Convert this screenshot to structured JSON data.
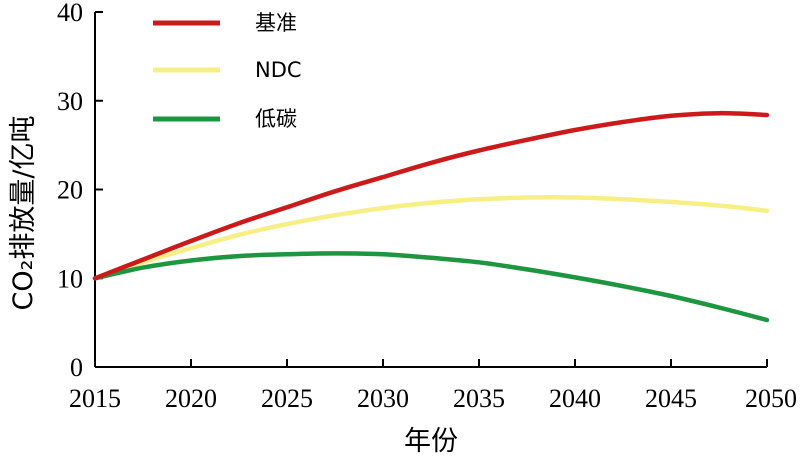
{
  "chart_data": {
    "type": "line",
    "title": "",
    "xlabel": "年份",
    "ylabel": "CO₂排放量/亿吨",
    "xlim": [
      2015,
      2050
    ],
    "ylim": [
      0,
      40
    ],
    "x_ticks": [
      "2015",
      "2020",
      "2025",
      "2030",
      "2035",
      "2040",
      "2045",
      "2050"
    ],
    "y_ticks": [
      "0",
      "10",
      "20",
      "30",
      "40"
    ],
    "legend_position": "top-left",
    "grid": false,
    "x": [
      2015,
      2017.5,
      2020,
      2022.5,
      2025,
      2027.5,
      2030,
      2032.5,
      2035,
      2037.5,
      2040,
      2042.5,
      2045,
      2047.5,
      2050
    ],
    "series": [
      {
        "name": "基准",
        "color": "#cc1a1a",
        "values": [
          10.0,
          12.1,
          14.2,
          16.2,
          18.0,
          19.8,
          21.4,
          23.0,
          24.4,
          25.6,
          26.7,
          27.6,
          28.3,
          28.6,
          28.4
        ]
      },
      {
        "name": "NDC",
        "color": "#f7ef84",
        "values": [
          10.0,
          11.8,
          13.4,
          14.9,
          16.1,
          17.1,
          17.9,
          18.5,
          18.9,
          19.1,
          19.1,
          18.9,
          18.6,
          18.2,
          17.6
        ]
      },
      {
        "name": "低碳",
        "color": "#1e9640",
        "values": [
          10.0,
          11.2,
          12.0,
          12.5,
          12.7,
          12.8,
          12.7,
          12.3,
          11.8,
          11.0,
          10.1,
          9.1,
          8.0,
          6.7,
          5.3
        ]
      }
    ]
  }
}
